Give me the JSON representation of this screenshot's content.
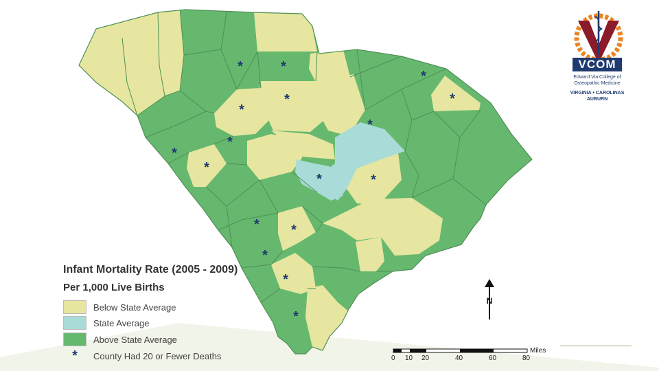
{
  "map": {
    "title": "Infant Mortality Rate (2005 - 2009)",
    "subtitle": "Per 1,000 Live Births",
    "legend": [
      {
        "key": "below",
        "label": "Below State Average",
        "color": "#e6e6a0"
      },
      {
        "key": "state",
        "label": "State Average",
        "color": "#a9dcd8"
      },
      {
        "key": "above",
        "label": "Above State Average",
        "color": "#66b86e"
      }
    ],
    "marker_label": "County Had 20 or Fewer Deaths",
    "marker_color": "#1f3a6e",
    "border_color": "#4f8f55",
    "north_label": "N",
    "scale": {
      "unit": "Miles",
      "ticks": [
        0,
        10,
        20,
        40,
        60,
        80
      ]
    }
  },
  "logo": {
    "letter": "V",
    "name": "VCOM",
    "line1": "Edward Via College of",
    "line2": "Osteopathic Medicine",
    "line3": "VIRGINIA • CAROLINAS",
    "line4": "AUBURN",
    "colors": {
      "maroon": "#8b1a2a",
      "orange": "#e98524",
      "navy": "#1f3a6e"
    }
  }
}
